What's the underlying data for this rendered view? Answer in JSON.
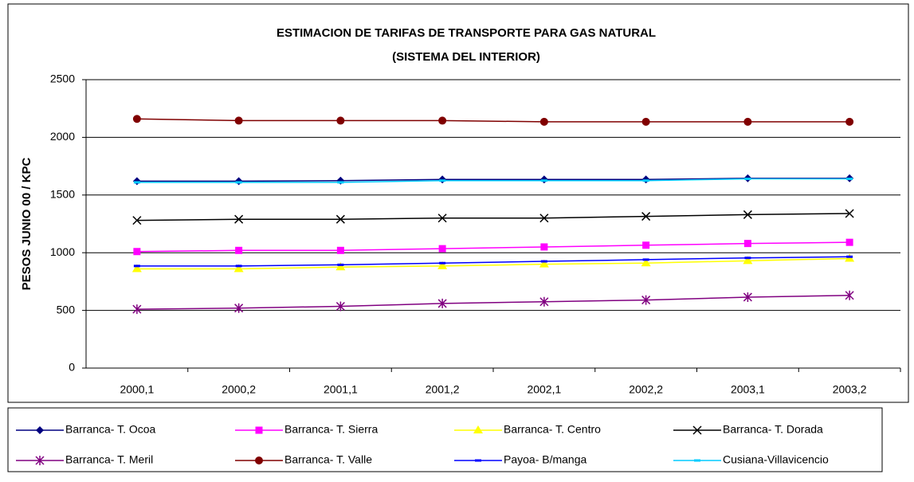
{
  "chart_data": {
    "type": "line",
    "title": "ESTIMACION DE TARIFAS DE TRANSPORTE PARA GAS NATURAL",
    "subtitle": "(SISTEMA DEL INTERIOR)",
    "y_label": "PESOS JUNIO  00 / KPC",
    "categories": [
      "2000,1",
      "2000,2",
      "2001,1",
      "2001,2",
      "2002,1",
      "2002,2",
      "2003,1",
      "2003,2"
    ],
    "ylim": [
      0,
      2500
    ],
    "yticks": [
      0,
      500,
      1000,
      1500,
      2000,
      2500
    ],
    "grid": true,
    "legend": "bottom",
    "series": [
      {
        "name": "Barranca- T. Ocoa",
        "color": "#000080",
        "marker": "diamond",
        "values": [
          1620,
          1620,
          1625,
          1635,
          1635,
          1635,
          1645,
          1645
        ]
      },
      {
        "name": "Barranca- T. Sierra",
        "color": "#ff00ff",
        "marker": "square",
        "values": [
          1010,
          1020,
          1020,
          1035,
          1050,
          1065,
          1080,
          1090
        ]
      },
      {
        "name": "Barranca- T. Centro",
        "color": "#ffff00",
        "marker": "triangle",
        "values": [
          860,
          860,
          875,
          885,
          900,
          910,
          930,
          950
        ]
      },
      {
        "name": "Barranca- T. Dorada",
        "color": "#000000",
        "marker": "x",
        "values": [
          1280,
          1290,
          1290,
          1300,
          1300,
          1315,
          1330,
          1340
        ]
      },
      {
        "name": "Barranca- T. Meril",
        "color": "#800080",
        "marker": "star",
        "values": [
          510,
          520,
          535,
          560,
          575,
          590,
          615,
          630
        ]
      },
      {
        "name": "Barranca- T. Valle",
        "color": "#800000",
        "marker": "circle",
        "values": [
          2160,
          2145,
          2145,
          2145,
          2135,
          2135,
          2135,
          2135
        ]
      },
      {
        "name": "Payoa- B/manga",
        "color": "#0000ff",
        "marker": "dash",
        "values": [
          885,
          885,
          895,
          910,
          925,
          940,
          955,
          965
        ]
      },
      {
        "name": "Cusiana-Villavicencio",
        "color": "#00ccff",
        "marker": "dash",
        "values": [
          1610,
          1610,
          1610,
          1625,
          1625,
          1625,
          1640,
          1640
        ]
      }
    ]
  }
}
